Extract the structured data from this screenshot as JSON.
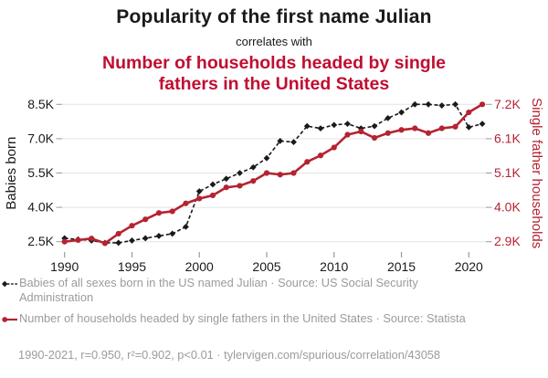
{
  "header": {
    "title": "Popularity of the first name Julian",
    "connector": "correlates with",
    "subtitle": "Number of households headed by single fathers in the United States"
  },
  "chart_data": {
    "type": "line",
    "x": [
      1990,
      1991,
      1992,
      1993,
      1994,
      1995,
      1996,
      1997,
      1998,
      1999,
      2000,
      2001,
      2002,
      2003,
      2004,
      2005,
      2006,
      2007,
      2008,
      2009,
      2010,
      2011,
      2012,
      2013,
      2014,
      2015,
      2016,
      2017,
      2018,
      2019,
      2020,
      2021
    ],
    "x_ticks": [
      1990,
      1995,
      2000,
      2005,
      2010,
      2015,
      2020
    ],
    "x_tick_labels": [
      "1990",
      "1995",
      "2000",
      "2005",
      "2010",
      "2015",
      "2020"
    ],
    "left_axis": {
      "label": "Babies born",
      "tick_labels_top_to_bottom": [
        "8.5K",
        "7.0K",
        "5.5K",
        "4.0K",
        "2.5K"
      ],
      "tick_values_top_to_bottom": [
        8500,
        7000,
        5500,
        4000,
        2500
      ],
      "range": [
        2500,
        8500
      ]
    },
    "right_axis": {
      "label": "Single father households",
      "tick_labels_top_to_bottom": [
        "7.2K",
        "6.1K",
        "5.1K",
        "4.0K",
        "2.9K"
      ],
      "tick_values_top_to_bottom": [
        7.2,
        6.1,
        5.1,
        4.0,
        2.9
      ],
      "range": [
        2.9,
        7.2
      ]
    },
    "grid": true,
    "legend_position": "below",
    "series": [
      {
        "name": "Babies of all sexes born in the US named Julian",
        "axis": "left",
        "style": "dashed-diamond",
        "values": [
          2650,
          2600,
          2550,
          2450,
          2450,
          2550,
          2650,
          2750,
          2850,
          3150,
          4700,
          5000,
          5250,
          5500,
          5750,
          6150,
          6900,
          6850,
          7550,
          7450,
          7600,
          7650,
          7450,
          7550,
          7900,
          8150,
          8500,
          8500,
          8450,
          8500,
          7500,
          7650
        ]
      },
      {
        "name": "Number of households headed by single fathers in the United States",
        "axis": "right",
        "style": "solid-circle",
        "values": [
          2.9,
          2.95,
          3.0,
          2.85,
          3.15,
          3.4,
          3.6,
          3.8,
          3.85,
          4.1,
          4.25,
          4.35,
          4.6,
          4.65,
          4.8,
          5.05,
          5.0,
          5.05,
          5.4,
          5.6,
          5.85,
          6.25,
          6.35,
          6.15,
          6.3,
          6.4,
          6.45,
          6.3,
          6.45,
          6.5,
          6.95,
          7.2
        ]
      }
    ]
  },
  "legend": {
    "items": [
      {
        "marker": "black-diamond-dashed",
        "label": "Babies of all sexes born in the US named Julian · Source: US Social Security Administration"
      },
      {
        "marker": "red-circle-solid",
        "label": "Number of households headed by single fathers in the United States · Source: Statista"
      }
    ]
  },
  "footer": {
    "stats": "1990-2021, r=0.950, r²=0.902, p<0.01 · tylervigen.com/spurious/correlation/43058"
  },
  "colors": {
    "ink": "#1a1a1a",
    "heading_red": "#c00d31",
    "series_black": "#1a1a1a",
    "series_red": "#b42331",
    "gray_text": "#9b9b9b",
    "grid": "#e4e4e4",
    "tick": "#999999"
  }
}
